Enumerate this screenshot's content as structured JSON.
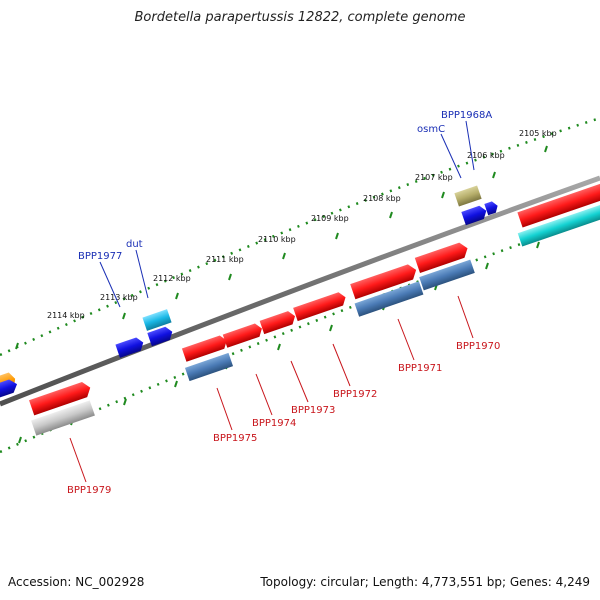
{
  "title": "Bordetella parapertussis 12822, complete genome",
  "footer": {
    "accession": "Accession: NC_002928",
    "topology": "Topology: circular; Length: 4,773,551 bp; Genes: 4,249"
  },
  "scale_labels": [
    "2105 kbp",
    "2106 kbp",
    "2107 kbp",
    "2108 kbp",
    "2109 kbp",
    "2110 kbp",
    "2111 kbp",
    "2112 kbp",
    "2113 kbp",
    "2114 kbp"
  ],
  "upper_gene_labels": [
    "BPP1968A",
    "osmC",
    "dut",
    "BPP1977"
  ],
  "lower_gene_labels": [
    "BPP1970",
    "BPP1971",
    "BPP1972",
    "BPP1973",
    "BPP1974",
    "BPP1975",
    "BPP1979"
  ],
  "colors": {
    "cds": "#ff1a1a",
    "cds_dark": "#4a7ab5",
    "small_blue": "#1010e0",
    "light_blue": "#19b8e6",
    "olive": "#b5ad6a",
    "orange": "#ff9a00",
    "gray": "#c8c8c8",
    "cyan": "#14d2d2",
    "backbone": "#7a7a7a",
    "tick": "#1f8a1f",
    "label_blue": "#1a2fb5",
    "label_red": "#c8151b"
  }
}
